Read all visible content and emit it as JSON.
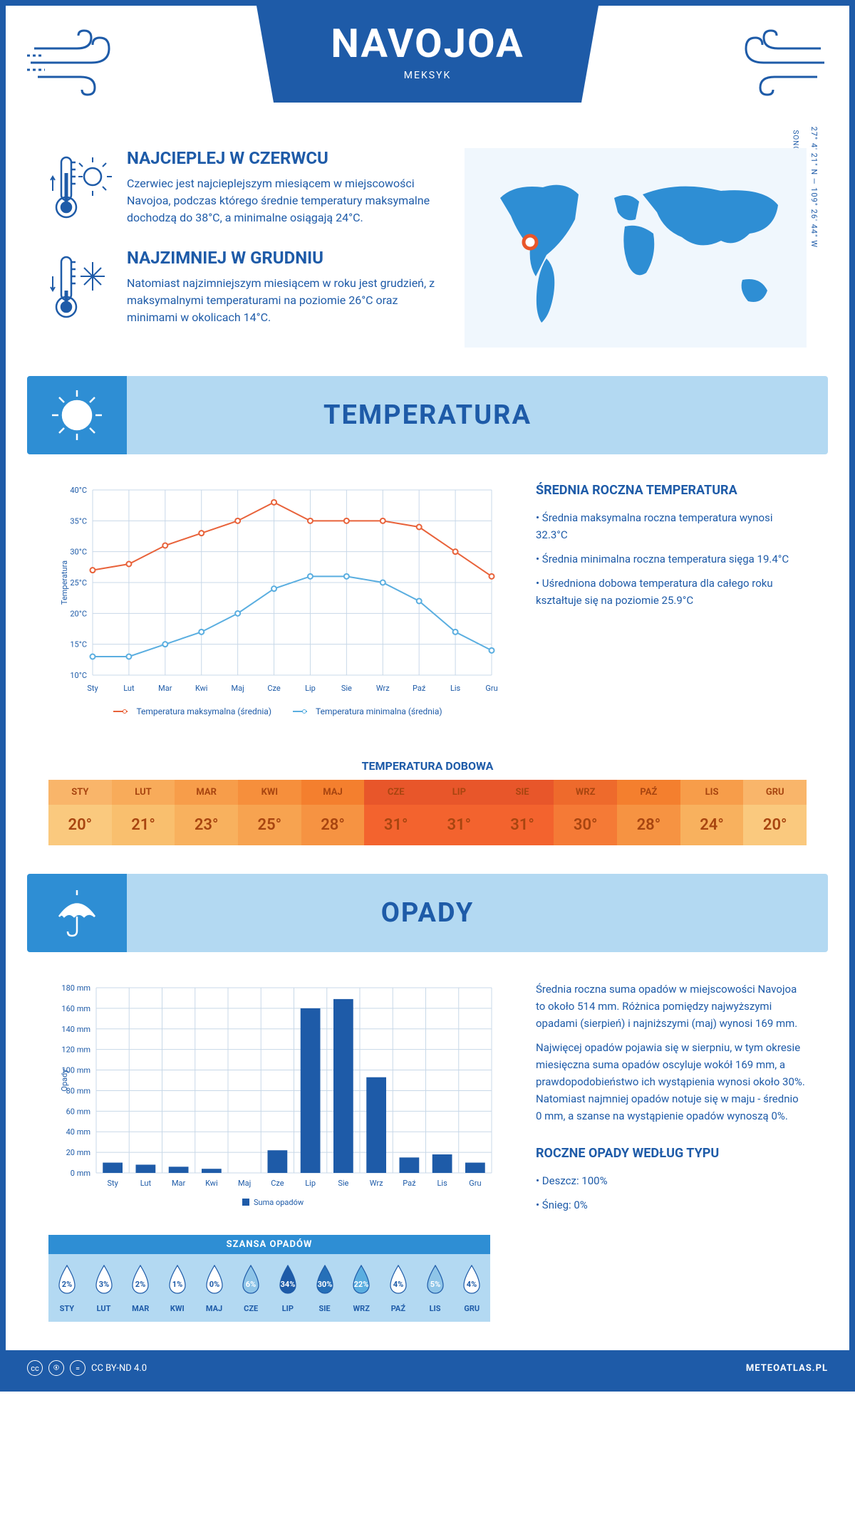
{
  "header": {
    "title": "NAVOJOA",
    "subtitle": "MEKSYK"
  },
  "intro": {
    "hot": {
      "title": "NAJCIEPLEJ W CZERWCU",
      "text": "Czerwiec jest najcieplejszym miesiącem w miejscowości Navojoa, podczas którego średnie temperatury maksymalne dochodzą do 38°C, a minimalne osiągają 24°C."
    },
    "cold": {
      "title": "NAJZIMNIEJ W GRUDNIU",
      "text": "Natomiast najzimniejszym miesiącem w roku jest grudzień, z maksymalnymi temperaturami na poziomie 26°C oraz minimami w okolicach 14°C."
    },
    "region": "SONORA",
    "coords": "27° 4' 21\" N — 109° 26' 44\" W"
  },
  "temperature": {
    "section_title": "TEMPERATURA",
    "chart": {
      "type": "line",
      "months": [
        "Sty",
        "Lut",
        "Mar",
        "Kwi",
        "Maj",
        "Cze",
        "Lip",
        "Sie",
        "Wrz",
        "Paź",
        "Lis",
        "Gru"
      ],
      "y_label": "Temperatura",
      "y_min": 10,
      "y_max": 40,
      "y_step": 5,
      "series": [
        {
          "name": "Temperatura maksymalna (średnia)",
          "color": "#e8623a",
          "values": [
            27,
            28,
            31,
            33,
            35,
            38,
            35,
            35,
            35,
            34,
            30,
            26
          ]
        },
        {
          "name": "Temperatura minimalna (średnia)",
          "color": "#5aaee0",
          "values": [
            13,
            13,
            15,
            17,
            20,
            24,
            26,
            26,
            25,
            22,
            17,
            14
          ]
        }
      ],
      "grid_color": "#c8d8e8",
      "bg": "#ffffff",
      "label_fontsize": 11
    },
    "stats": {
      "title": "ŚREDNIA ROCZNA TEMPERATURA",
      "items": [
        "Średnia maksymalna roczna temperatura wynosi 32.3°C",
        "Średnia minimalna roczna temperatura sięga 19.4°C",
        "Uśredniona dobowa temperatura dla całego roku kształtuje się na poziomie 25.9°C"
      ]
    },
    "daily": {
      "title": "TEMPERATURA DOBOWA",
      "months": [
        "STY",
        "LUT",
        "MAR",
        "KWI",
        "MAJ",
        "CZE",
        "LIP",
        "SIE",
        "WRZ",
        "PAŹ",
        "LIS",
        "GRU"
      ],
      "values": [
        "20°",
        "21°",
        "23°",
        "25°",
        "28°",
        "31°",
        "31°",
        "31°",
        "30°",
        "28°",
        "24°",
        "20°"
      ],
      "head_colors": [
        "#f9b56a",
        "#f8ab5a",
        "#f79d4a",
        "#f68f3c",
        "#f47f2e",
        "#e8562a",
        "#e8562a",
        "#e8562a",
        "#ee6a2c",
        "#f47f2e",
        "#f79d4a",
        "#f9b56a"
      ],
      "val_colors": [
        "#fac97e",
        "#f9bf6e",
        "#f8b15e",
        "#f7a350",
        "#f69342",
        "#f3632e",
        "#f3632e",
        "#f3632e",
        "#f57a36",
        "#f69342",
        "#f8b15e",
        "#fac97e"
      ],
      "text_color": "#a84510"
    }
  },
  "precipitation": {
    "section_title": "OPADY",
    "chart": {
      "type": "bar",
      "months": [
        "Sty",
        "Lut",
        "Mar",
        "Kwi",
        "Maj",
        "Cze",
        "Lip",
        "Sie",
        "Wrz",
        "Paź",
        "Lis",
        "Gru"
      ],
      "y_label": "Opady",
      "y_min": 0,
      "y_max": 180,
      "y_step": 20,
      "values": [
        10,
        8,
        6,
        4,
        0,
        22,
        160,
        169,
        93,
        15,
        18,
        10
      ],
      "bar_color": "#1e5ba8",
      "grid_color": "#c8d8e8",
      "legend": "Suma opadów",
      "label_fontsize": 11
    },
    "text": {
      "p1": "Średnia roczna suma opadów w miejscowości Navojoa to około 514 mm. Różnica pomiędzy najwyższymi opadami (sierpień) i najniższymi (maj) wynosi 169 mm.",
      "p2": "Najwięcej opadów pojawia się w sierpniu, w tym okresie miesięczna suma opadów oscyluje wokół 169 mm, a prawdopodobieństwo ich wystąpienia wynosi około 30%. Natomiast najmniej opadów notuje się w maju - średnio 0 mm, a szanse na wystąpienie opadów wynoszą 0%."
    },
    "chance": {
      "title": "SZANSA OPADÓW",
      "months": [
        "STY",
        "LUT",
        "MAR",
        "KWI",
        "MAJ",
        "CZE",
        "LIP",
        "SIE",
        "WRZ",
        "PAŹ",
        "LIS",
        "GRU"
      ],
      "values": [
        "2%",
        "3%",
        "2%",
        "1%",
        "0%",
        "6%",
        "34%",
        "30%",
        "22%",
        "4%",
        "5%",
        "4%"
      ],
      "fills": [
        "#ffffff",
        "#ffffff",
        "#ffffff",
        "#ffffff",
        "#ffffff",
        "#8fc5e8",
        "#1e5ba8",
        "#2670b8",
        "#5aaee0",
        "#ffffff",
        "#8fc5e8",
        "#ffffff"
      ],
      "text_colors": [
        "#1e5ba8",
        "#1e5ba8",
        "#1e5ba8",
        "#1e5ba8",
        "#1e5ba8",
        "#ffffff",
        "#ffffff",
        "#ffffff",
        "#ffffff",
        "#1e5ba8",
        "#ffffff",
        "#1e5ba8"
      ]
    },
    "by_type": {
      "title": "ROCZNE OPADY WEDŁUG TYPU",
      "items": [
        "Deszcz: 100%",
        "Śnieg: 0%"
      ]
    }
  },
  "footer": {
    "license": "CC BY-ND 4.0",
    "site": "METEOATLAS.PL"
  },
  "colors": {
    "primary": "#1e5ba8",
    "light_blue": "#b3d9f2",
    "mid_blue": "#2e8ed4"
  }
}
